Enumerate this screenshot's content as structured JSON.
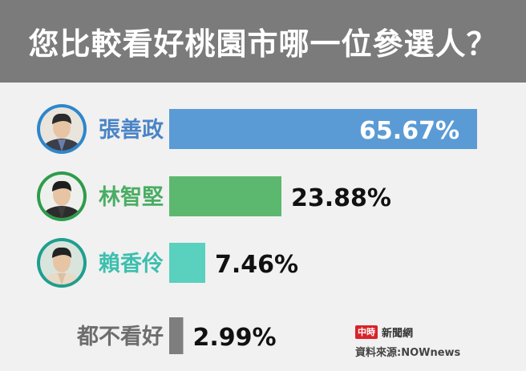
{
  "header": {
    "title": "您比較看好桃園市哪一位參選人？"
  },
  "chart_data": {
    "type": "bar",
    "orientation": "horizontal",
    "title": "您比較看好桃園市哪一位參選人？",
    "categories": [
      "張善政",
      "林智堅",
      "賴香伶",
      "都不看好"
    ],
    "values": [
      65.67,
      23.88,
      7.46,
      2.99
    ],
    "value_labels": [
      "65.67%",
      "23.88%",
      "7.46%",
      "2.99%"
    ],
    "colors": [
      "#5b9bd5",
      "#5cb86f",
      "#5ad0bf",
      "#7e7e7e"
    ],
    "label_colors": [
      "#4a84c6",
      "#4aad63",
      "#3cbfae",
      "#6d6d6d"
    ],
    "xlim": [
      0,
      100
    ],
    "grid": false,
    "legend": "none"
  },
  "candidates": [
    {
      "avatar": "candidate-photo-chang-san-cheng-icon"
    },
    {
      "avatar": "candidate-photo-lin-chih-chien-icon"
    },
    {
      "avatar": "candidate-photo-lai-hsiang-ling-icon"
    }
  ],
  "footer": {
    "brand_logo": "中時",
    "brand_name": "新聞網",
    "source": "資料來源:NOWnews"
  }
}
